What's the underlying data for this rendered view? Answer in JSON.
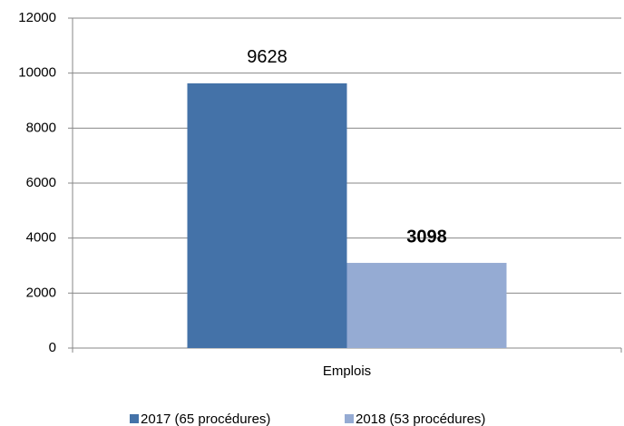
{
  "chart_data": {
    "type": "bar",
    "categories": [
      "Emplois"
    ],
    "series": [
      {
        "name": "2017 (65 procédures)",
        "color": "#4472a8",
        "values": [
          9628
        ]
      },
      {
        "name": "2018 (53 procédures)",
        "color": "#95abd3",
        "values": [
          3098
        ]
      }
    ],
    "ylim": [
      0,
      12000
    ],
    "yticks": [
      0,
      2000,
      4000,
      6000,
      8000,
      10000,
      12000
    ],
    "grid": true,
    "legend": "bottom"
  }
}
